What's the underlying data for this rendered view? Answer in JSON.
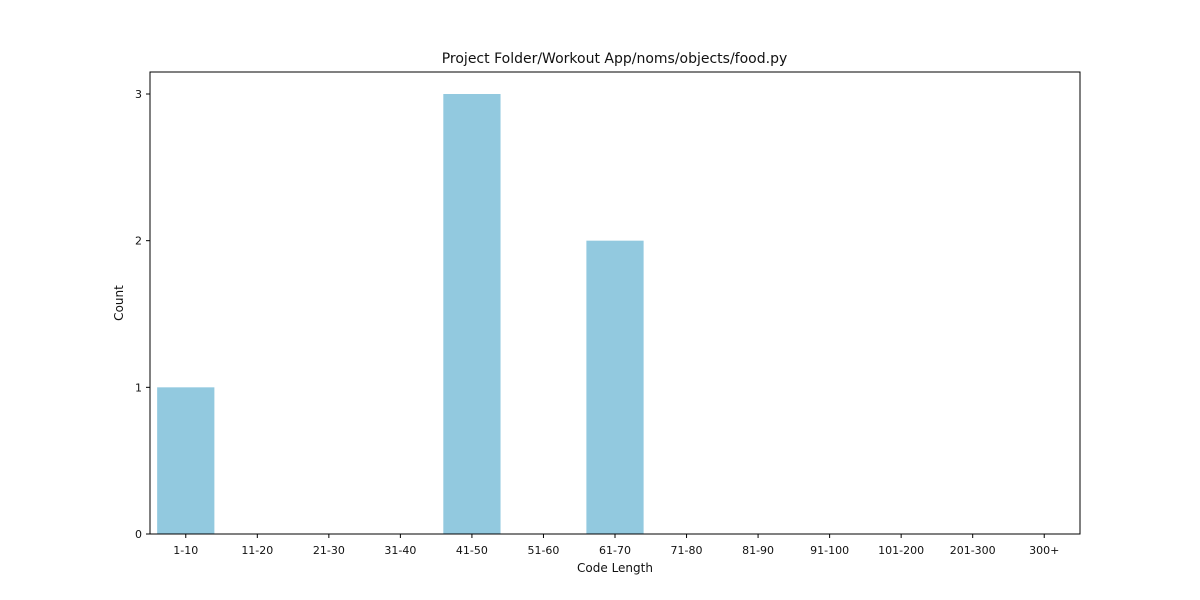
{
  "chart_data": {
    "type": "bar",
    "title": "Project Folder/Workout App/noms/objects/food.py",
    "xlabel": "Code Length",
    "ylabel": "Count",
    "categories": [
      "1-10",
      "11-20",
      "21-30",
      "31-40",
      "41-50",
      "51-60",
      "61-70",
      "71-80",
      "81-90",
      "91-100",
      "101-200",
      "201-300",
      "300+"
    ],
    "values": [
      1,
      0,
      0,
      0,
      3,
      0,
      2,
      0,
      0,
      0,
      0,
      0,
      0
    ],
    "ylim": [
      0,
      3.15
    ],
    "yticks": [
      0,
      1,
      2,
      3
    ],
    "grid": false,
    "bar_color": "#92C9DF",
    "axis_color": "#000000"
  }
}
